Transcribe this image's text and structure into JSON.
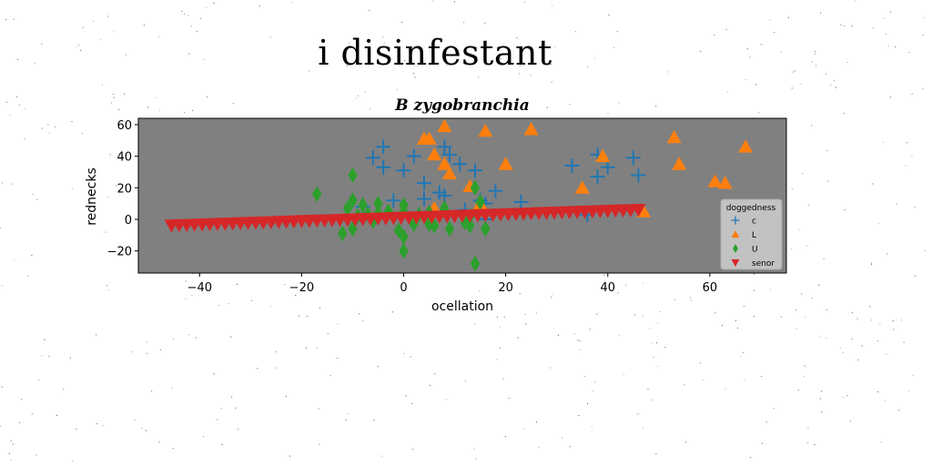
{
  "page_title": "i disinfestant",
  "chart_data": {
    "type": "scatter",
    "title": "B zygobranchia",
    "xlabel": "ocellation",
    "ylabel": "rednecks",
    "xlim": [
      -52,
      75
    ],
    "ylim": [
      -34,
      64
    ],
    "xticks": [
      -40,
      -20,
      0,
      20,
      40,
      60
    ],
    "yticks": [
      -20,
      0,
      20,
      40,
      60
    ],
    "xtick_labels": [
      "−40",
      "−20",
      "0",
      "20",
      "40",
      "60"
    ],
    "ytick_labels": [
      "−20",
      "0",
      "20",
      "40",
      "60"
    ],
    "grid": false,
    "background": "#808080",
    "legend": {
      "title": "doggedness",
      "position": "lower-right"
    },
    "series": [
      {
        "name": "c",
        "marker": "plus",
        "color": "#1f77b4",
        "points": [
          [
            -4,
            46
          ],
          [
            -6,
            39
          ],
          [
            -4,
            33
          ],
          [
            0,
            31
          ],
          [
            2,
            40
          ],
          [
            4,
            23
          ],
          [
            4,
            13
          ],
          [
            7,
            17
          ],
          [
            8,
            15
          ],
          [
            8,
            46
          ],
          [
            9,
            41
          ],
          [
            11,
            35
          ],
          [
            14,
            31
          ],
          [
            15,
            12
          ],
          [
            16,
            10
          ],
          [
            18,
            18
          ],
          [
            23,
            11
          ],
          [
            -2,
            12
          ],
          [
            33,
            34
          ],
          [
            38,
            41
          ],
          [
            38,
            27
          ],
          [
            40,
            33
          ],
          [
            45,
            39
          ],
          [
            46,
            28
          ],
          [
            36,
            3
          ],
          [
            16,
            0
          ],
          [
            12,
            6
          ],
          [
            -8,
            8
          ]
        ]
      },
      {
        "name": "L",
        "marker": "triangle-up",
        "color": "#ff7f0e",
        "points": [
          [
            4,
            51
          ],
          [
            5,
            51
          ],
          [
            8,
            59
          ],
          [
            6,
            41
          ],
          [
            8,
            35
          ],
          [
            9,
            29
          ],
          [
            13,
            21
          ],
          [
            16,
            56
          ],
          [
            20,
            35
          ],
          [
            25,
            57
          ],
          [
            35,
            20
          ],
          [
            39,
            40
          ],
          [
            47,
            5
          ],
          [
            53,
            52
          ],
          [
            54,
            35
          ],
          [
            61,
            24
          ],
          [
            63,
            23
          ],
          [
            67,
            46
          ],
          [
            6,
            7
          ],
          [
            15,
            10
          ]
        ]
      },
      {
        "name": "U",
        "marker": "diamond",
        "color": "#2ca02c",
        "points": [
          [
            -17,
            16
          ],
          [
            -11,
            7
          ],
          [
            -10,
            28
          ],
          [
            -10,
            12
          ],
          [
            -9,
            2
          ],
          [
            -8,
            9
          ],
          [
            -7,
            3
          ],
          [
            -5,
            4
          ],
          [
            -5,
            10
          ],
          [
            -3,
            5
          ],
          [
            -1,
            -7
          ],
          [
            0,
            -20
          ],
          [
            0,
            9
          ],
          [
            0,
            5
          ],
          [
            2,
            -3
          ],
          [
            3,
            3
          ],
          [
            5,
            -3
          ],
          [
            6,
            -4
          ],
          [
            9,
            -6
          ],
          [
            13,
            2
          ],
          [
            13,
            -4
          ],
          [
            14,
            -28
          ],
          [
            14,
            20
          ],
          [
            15,
            11
          ],
          [
            16,
            -6
          ],
          [
            -12,
            -9
          ],
          [
            -10,
            -6
          ],
          [
            -6,
            -1
          ],
          [
            0,
            -11
          ],
          [
            5,
            4
          ],
          [
            8,
            7
          ],
          [
            12,
            -2
          ]
        ]
      },
      {
        "name": "senor",
        "marker": "triangle-down",
        "color": "#d62728",
        "points": [
          [
            -45.5,
            -3.8
          ],
          [
            -44,
            -3.6
          ],
          [
            -42.5,
            -3.5
          ],
          [
            -41,
            -3.3
          ],
          [
            -39.5,
            -3.2
          ],
          [
            -38,
            -3.0
          ],
          [
            -36.5,
            -2.8
          ],
          [
            -35,
            -2.7
          ],
          [
            -33.5,
            -2.5
          ],
          [
            -32,
            -2.3
          ],
          [
            -30.5,
            -2.2
          ],
          [
            -29,
            -2.0
          ],
          [
            -27.5,
            -1.9
          ],
          [
            -26,
            -1.7
          ],
          [
            -24.5,
            -1.5
          ],
          [
            -23,
            -1.4
          ],
          [
            -21.5,
            -1.2
          ],
          [
            -20,
            -1.0
          ],
          [
            -18.5,
            -0.9
          ],
          [
            -17,
            -0.7
          ],
          [
            -15.5,
            -0.6
          ],
          [
            -14,
            -0.4
          ],
          [
            -12.5,
            -0.2
          ],
          [
            -11,
            -0.1
          ],
          [
            -9.5,
            0.1
          ],
          [
            -8,
            0.3
          ],
          [
            -6.5,
            0.4
          ],
          [
            -5,
            0.6
          ],
          [
            -3.5,
            0.7
          ],
          [
            -2,
            0.9
          ],
          [
            -0.5,
            1.1
          ],
          [
            1,
            1.2
          ],
          [
            2.5,
            1.4
          ],
          [
            4,
            1.6
          ],
          [
            5.5,
            1.7
          ],
          [
            7,
            1.9
          ],
          [
            8.5,
            2.0
          ],
          [
            10,
            2.2
          ],
          [
            11.5,
            2.4
          ],
          [
            13,
            2.5
          ],
          [
            14.5,
            2.7
          ],
          [
            16,
            2.9
          ],
          [
            17.5,
            3.0
          ],
          [
            19,
            3.2
          ],
          [
            20.5,
            3.3
          ],
          [
            22,
            3.5
          ],
          [
            23.5,
            3.7
          ],
          [
            25,
            3.8
          ],
          [
            26.5,
            4.0
          ],
          [
            28,
            4.2
          ],
          [
            29.5,
            4.3
          ],
          [
            31,
            4.5
          ],
          [
            32.5,
            4.6
          ],
          [
            34,
            4.8
          ],
          [
            35.5,
            5.0
          ],
          [
            37,
            5.1
          ],
          [
            38.5,
            5.3
          ],
          [
            40,
            5.5
          ],
          [
            41.5,
            5.6
          ],
          [
            43,
            5.8
          ],
          [
            44.5,
            5.9
          ],
          [
            46,
            6.1
          ]
        ]
      }
    ]
  }
}
